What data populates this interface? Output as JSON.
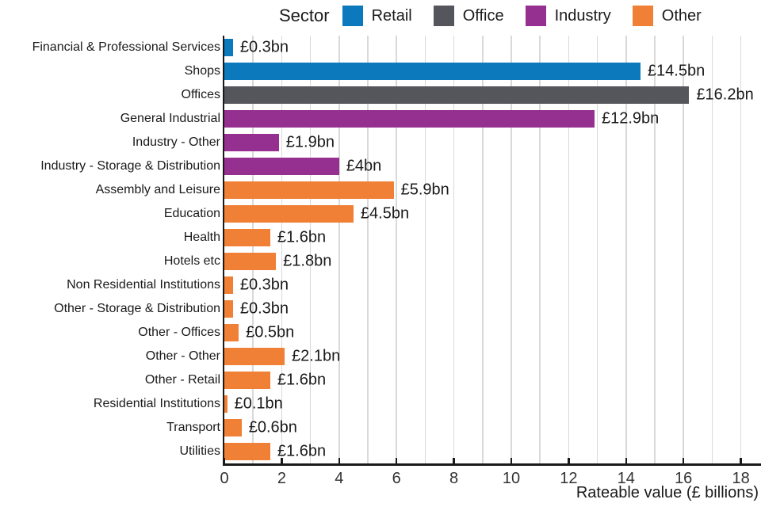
{
  "chart_data": {
    "type": "bar",
    "orientation": "horizontal",
    "xlabel": "Rateable value (£ billions)",
    "ylabel": "",
    "xlim": [
      0,
      18.7
    ],
    "x_ticks": [
      0,
      2,
      4,
      6,
      8,
      10,
      12,
      14,
      16,
      18
    ],
    "grid": "vertical gridlines every 1 unit, light gray",
    "legend": {
      "title": "Sector",
      "position": "top",
      "items": [
        {
          "label": "Retail",
          "color": "#0d79bd"
        },
        {
          "label": "Office",
          "color": "#54565b"
        },
        {
          "label": "Industry",
          "color": "#963090"
        },
        {
          "label": "Other",
          "color": "#f08036"
        }
      ]
    },
    "bars": [
      {
        "category": "Financial & Professional Services",
        "value": 0.3,
        "label": "£0.3bn",
        "sector": "Retail"
      },
      {
        "category": "Shops",
        "value": 14.5,
        "label": "£14.5bn",
        "sector": "Retail"
      },
      {
        "category": "Offices",
        "value": 16.2,
        "label": "£16.2bn",
        "sector": "Office"
      },
      {
        "category": "General Industrial",
        "value": 12.9,
        "label": "£12.9bn",
        "sector": "Industry"
      },
      {
        "category": "Industry - Other",
        "value": 1.9,
        "label": "£1.9bn",
        "sector": "Industry"
      },
      {
        "category": "Industry - Storage & Distribution",
        "value": 4,
        "label": "£4bn",
        "sector": "Industry"
      },
      {
        "category": "Assembly and Leisure",
        "value": 5.9,
        "label": "£5.9bn",
        "sector": "Other"
      },
      {
        "category": "Education",
        "value": 4.5,
        "label": "£4.5bn",
        "sector": "Other"
      },
      {
        "category": "Health",
        "value": 1.6,
        "label": "£1.6bn",
        "sector": "Other"
      },
      {
        "category": "Hotels etc",
        "value": 1.8,
        "label": "£1.8bn",
        "sector": "Other"
      },
      {
        "category": "Non Residential Institutions",
        "value": 0.3,
        "label": "£0.3bn",
        "sector": "Other"
      },
      {
        "category": "Other - Storage & Distribution",
        "value": 0.3,
        "label": "£0.3bn",
        "sector": "Other"
      },
      {
        "category": "Other - Offices",
        "value": 0.5,
        "label": "£0.5bn",
        "sector": "Other"
      },
      {
        "category": "Other - Other",
        "value": 2.1,
        "label": "£2.1bn",
        "sector": "Other"
      },
      {
        "category": "Other - Retail",
        "value": 1.6,
        "label": "£1.6bn",
        "sector": "Other"
      },
      {
        "category": "Residential Institutions",
        "value": 0.1,
        "label": "£0.1bn",
        "sector": "Other"
      },
      {
        "category": "Transport",
        "value": 0.6,
        "label": "£0.6bn",
        "sector": "Other"
      },
      {
        "category": "Utilities",
        "value": 1.6,
        "label": "£1.6bn",
        "sector": "Other"
      }
    ]
  }
}
